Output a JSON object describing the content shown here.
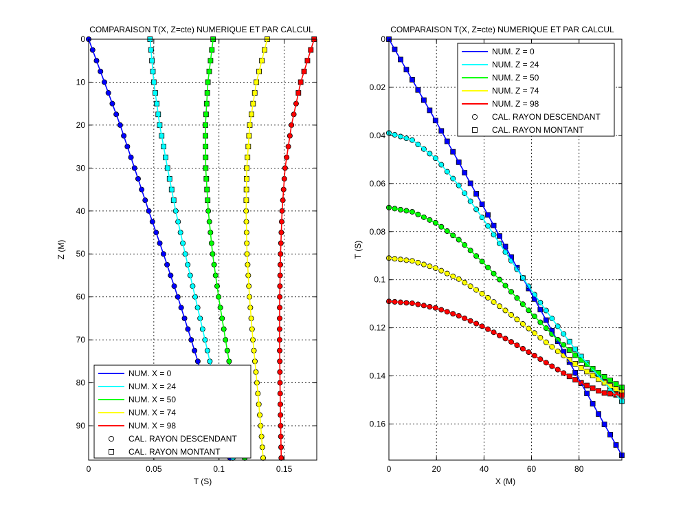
{
  "chart_data": [
    {
      "type": "line",
      "title": "COMPARAISON T(X, Z=cte) NUMERIQUE ET PAR CALCUL",
      "xlabel": "T (S)",
      "ylabel": "Z (M)",
      "xlim": [
        0,
        0.175
      ],
      "ylim": [
        0,
        98
      ],
      "y_reversed": true,
      "grid": true,
      "x_ticks": [
        0,
        0.05,
        0.1,
        0.15
      ],
      "x_tick_labels": [
        "0",
        "0.05",
        "0.1",
        "0.15"
      ],
      "y_ticks": [
        0,
        10,
        20,
        30,
        40,
        50,
        60,
        70,
        80,
        90
      ],
      "y_tick_labels": [
        "0",
        "10",
        "20",
        "30",
        "40",
        "50",
        "60",
        "70",
        "80",
        "90"
      ],
      "legend_position": "bottom-left",
      "series": [
        {
          "name": "NUM. X = 0",
          "color": "#0000ff",
          "x": [
            0.0,
            0.0121,
            0.0242,
            0.0352,
            0.0461,
            0.0574,
            0.0684,
            0.0787,
            0.0888,
            0.0988,
            0.1092
          ],
          "y": [
            0,
            10,
            20,
            30,
            40,
            50,
            60,
            70,
            80,
            90,
            98
          ]
        },
        {
          "name": "NUM. X = 24",
          "color": "#00ffff",
          "x": [
            0.0471,
            0.05,
            0.0545,
            0.0605,
            0.0668,
            0.0741,
            0.0817,
            0.0893,
            0.0966,
            0.1034,
            0.1111
          ],
          "y": [
            0,
            10,
            20,
            30,
            40,
            50,
            60,
            70,
            80,
            90,
            98
          ]
        },
        {
          "name": "NUM. X = 50",
          "color": "#00ff00",
          "x": [
            0.0955,
            0.0915,
            0.0896,
            0.0898,
            0.0918,
            0.0951,
            0.0997,
            0.105,
            0.1105,
            0.1156,
            0.12
          ],
          "y": [
            0,
            10,
            20,
            30,
            40,
            50,
            60,
            70,
            80,
            90,
            98
          ]
        },
        {
          "name": "NUM. X = 74",
          "color": "#ffff00",
          "x": [
            0.137,
            0.1287,
            0.1236,
            0.1213,
            0.1208,
            0.1215,
            0.1234,
            0.126,
            0.1291,
            0.132,
            0.134
          ],
          "y": [
            0,
            10,
            20,
            30,
            40,
            50,
            60,
            70,
            80,
            90,
            98
          ]
        },
        {
          "name": "NUM. X = 98",
          "color": "#ff0000",
          "x": [
            0.173,
            0.1627,
            0.1556,
            0.1507,
            0.1484,
            0.1472,
            0.1466,
            0.1465,
            0.1468,
            0.1473,
            0.1478
          ],
          "y": [
            0,
            10,
            20,
            30,
            40,
            50,
            60,
            70,
            80,
            90,
            98
          ]
        },
        {
          "name": "CAL. RAYON DESCENDANT",
          "marker": "circle",
          "color": "#000000"
        },
        {
          "name": "CAL. RAYON MONTANT",
          "marker": "square",
          "color": "#000000"
        }
      ]
    },
    {
      "type": "line",
      "title": "COMPARAISON T(X, Z=cte) NUMERIQUE ET PAR CALCUL",
      "xlabel": "X (M)",
      "ylabel": "T (S)",
      "xlim": [
        0,
        98
      ],
      "ylim": [
        0,
        0.175
      ],
      "y_reversed": true,
      "grid": true,
      "x_ticks": [
        0,
        20,
        40,
        60,
        80
      ],
      "x_tick_labels": [
        "0",
        "20",
        "40",
        "60",
        "80"
      ],
      "y_ticks": [
        0,
        0.02,
        0.04,
        0.06,
        0.08,
        0.1,
        0.12,
        0.14,
        0.16
      ],
      "y_tick_labels": [
        "0",
        "0.02",
        "0.04",
        "0.06",
        "0.08",
        "0.1",
        "0.12",
        "0.14",
        "0.16"
      ],
      "legend_position": "top-right",
      "series": [
        {
          "name": "NUM. Z = 0",
          "color": "#0000ff",
          "x": [
            0,
            10,
            20,
            30,
            40,
            50,
            60,
            70,
            80,
            90,
            98
          ],
          "y": [
            0.0,
            0.0172,
            0.0345,
            0.0522,
            0.0701,
            0.088,
            0.1058,
            0.1237,
            0.1415,
            0.159,
            0.173
          ]
        },
        {
          "name": "NUM. Z = 24",
          "color": "#00ffff",
          "x": [
            0,
            10,
            20,
            30,
            40,
            50,
            60,
            70,
            80,
            90,
            98
          ],
          "y": [
            0.039,
            0.042,
            0.0498,
            0.0615,
            0.0752,
            0.09,
            0.1045,
            0.118,
            0.131,
            0.142,
            0.1505
          ]
        },
        {
          "name": "NUM. Z = 50",
          "color": "#00ff00",
          "x": [
            0,
            10,
            20,
            30,
            40,
            50,
            60,
            70,
            80,
            90,
            98
          ],
          "y": [
            0.07,
            0.0718,
            0.0765,
            0.0838,
            0.0932,
            0.1035,
            0.114,
            0.124,
            0.1328,
            0.14,
            0.1448
          ]
        },
        {
          "name": "NUM. Z = 74",
          "color": "#ffff00",
          "x": [
            0,
            10,
            20,
            30,
            40,
            50,
            60,
            70,
            80,
            90,
            98
          ],
          "y": [
            0.091,
            0.0922,
            0.0953,
            0.1,
            0.1063,
            0.1135,
            0.1212,
            0.129,
            0.1361,
            0.1425,
            0.1468
          ]
        },
        {
          "name": "NUM. Z = 98",
          "color": "#ff0000",
          "x": [
            0,
            10,
            20,
            30,
            40,
            50,
            60,
            70,
            80,
            90,
            98
          ],
          "y": [
            0.109,
            0.1098,
            0.1118,
            0.1152,
            0.1197,
            0.125,
            0.1308,
            0.1368,
            0.1425,
            0.147,
            0.148
          ]
        },
        {
          "name": "CAL. RAYON DESCENDANT",
          "marker": "circle",
          "color": "#000000"
        },
        {
          "name": "CAL. RAYON MONTANT",
          "marker": "square",
          "color": "#000000"
        }
      ]
    }
  ]
}
